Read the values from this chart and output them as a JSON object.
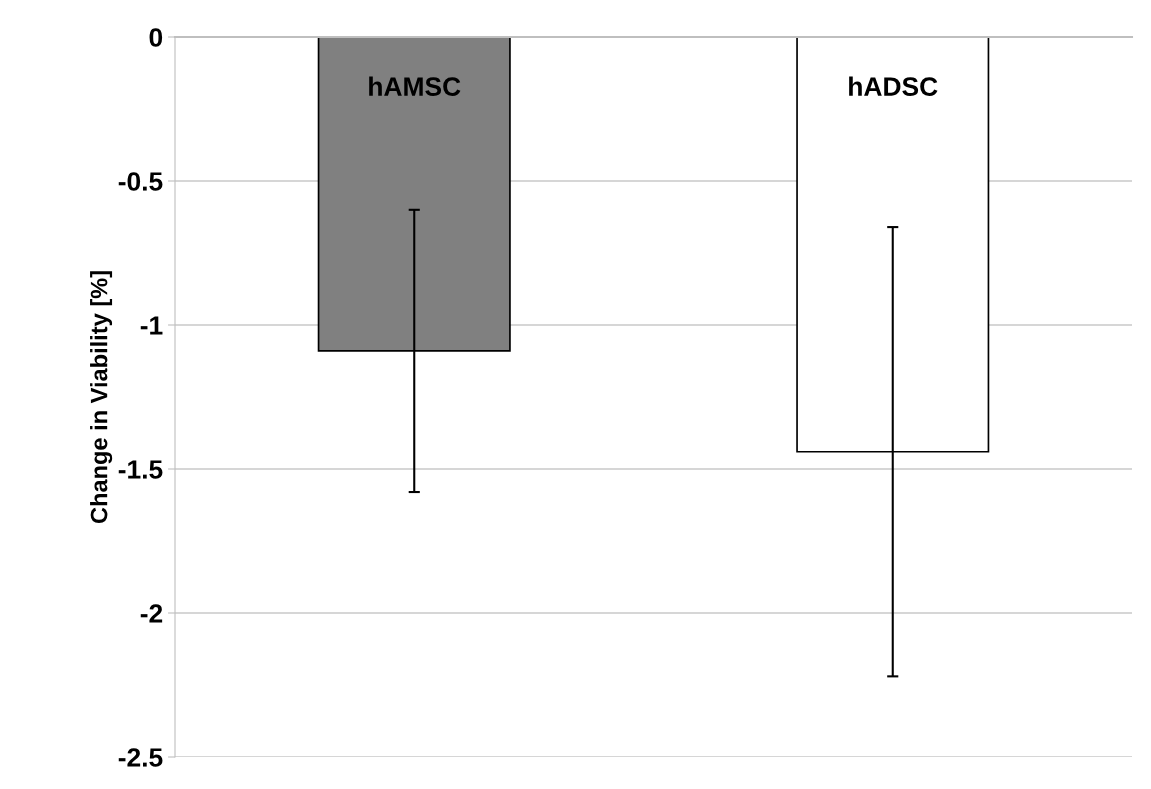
{
  "chart_data": {
    "type": "bar",
    "ylabel": "Change in Viability [%]",
    "categories": [
      "hAMSC",
      "hADSC"
    ],
    "values": [
      -1.09,
      -1.44
    ],
    "colors": [
      "#808080",
      "#ffffff"
    ],
    "errors": [
      0.49,
      0.78
    ],
    "ylim": [
      -2.5,
      0
    ],
    "yticks": [
      {
        "value": 0,
        "label": "0"
      },
      {
        "value": -0.5,
        "label": "-0.5"
      },
      {
        "value": -1,
        "label": "-1"
      },
      {
        "value": -1.5,
        "label": "-1.5"
      },
      {
        "value": -2,
        "label": "-2"
      },
      {
        "value": -2.5,
        "label": "-2.5"
      }
    ],
    "grid": "y",
    "tick_labels": "y"
  }
}
